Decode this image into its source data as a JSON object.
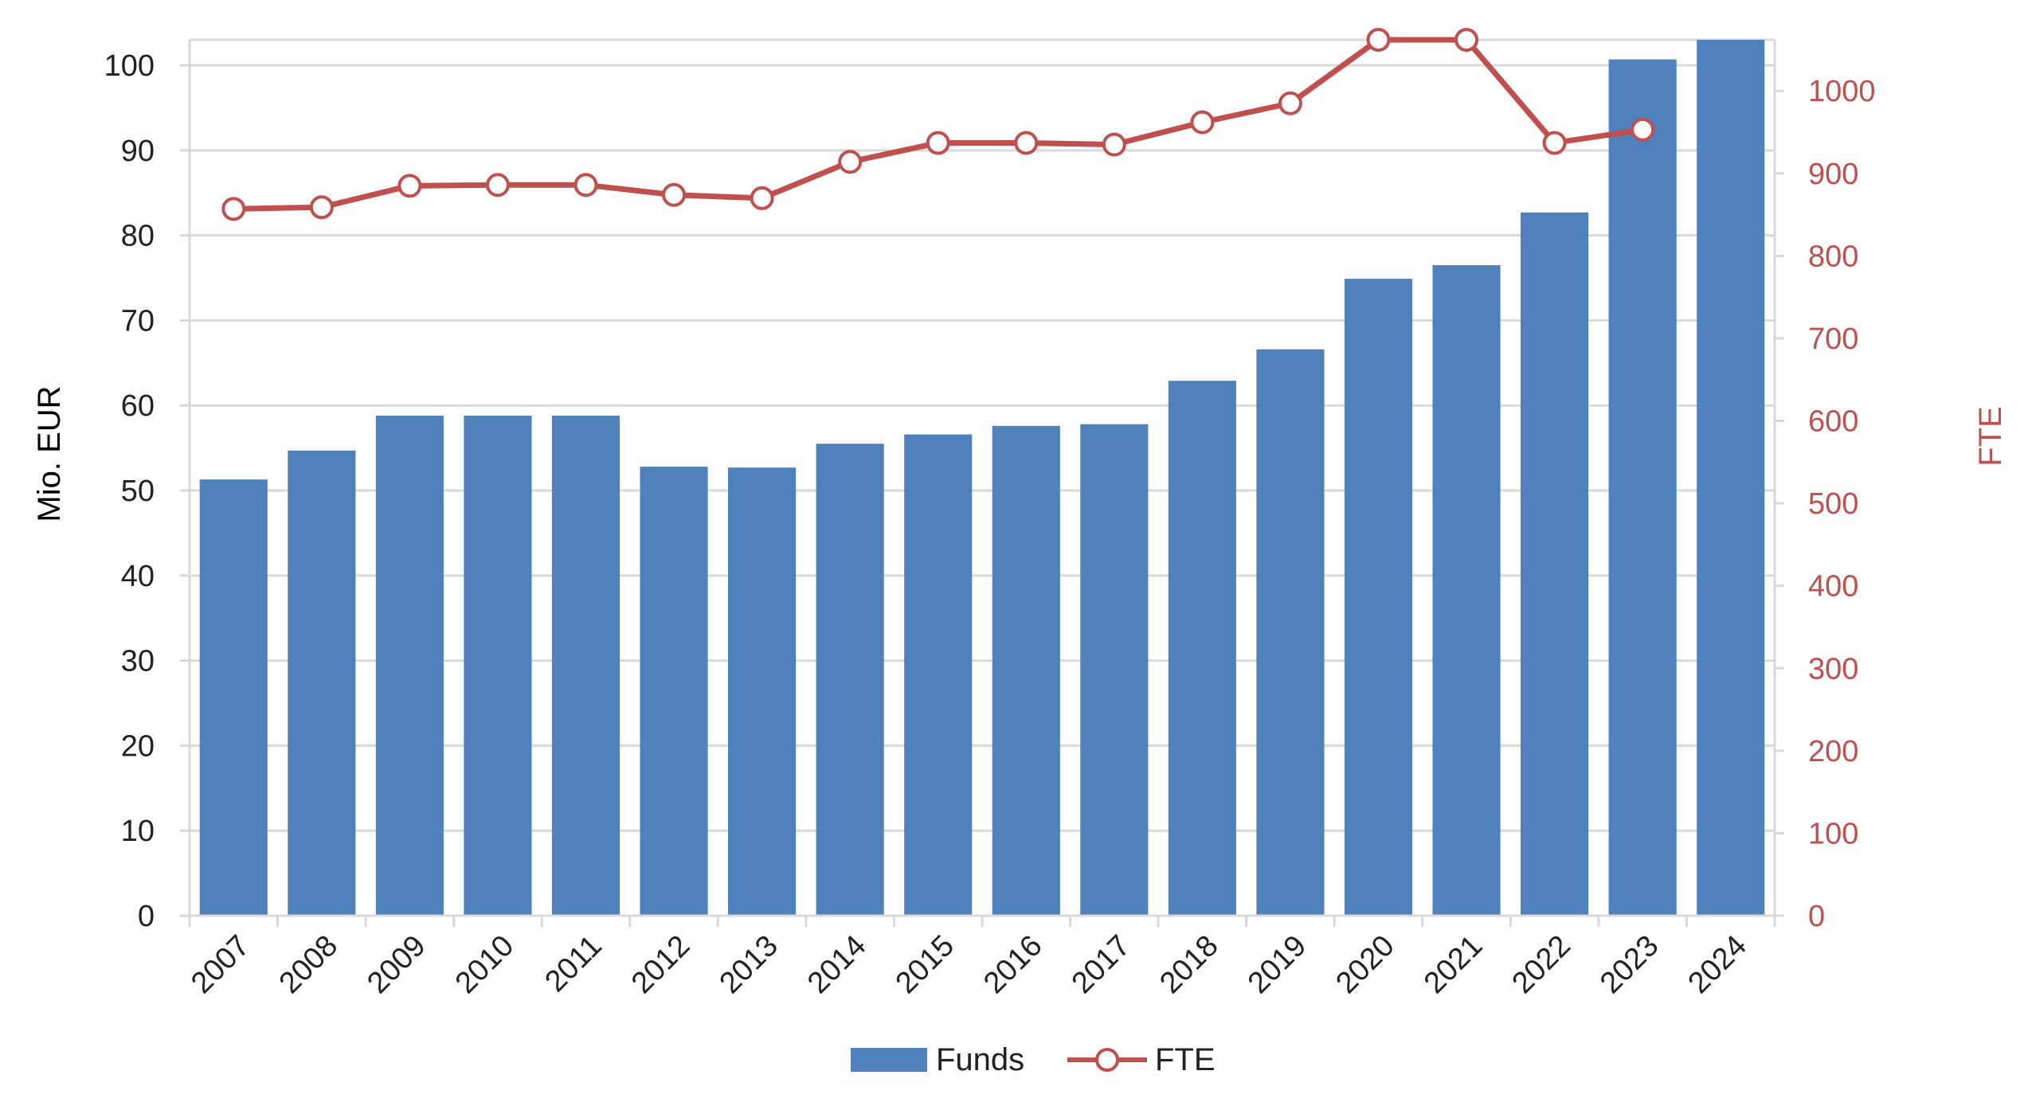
{
  "chart_data": {
    "type": "bar",
    "categories": [
      "2007",
      "2008",
      "2009",
      "2010",
      "2011",
      "2012",
      "2013",
      "2014",
      "2015",
      "2016",
      "2017",
      "2018",
      "2019",
      "2020",
      "2021",
      "2022",
      "2023",
      "2024"
    ],
    "series": [
      {
        "name": "Funds",
        "type": "bar",
        "axis": "left",
        "color": "#4f81bd",
        "values": [
          51.3,
          54.7,
          58.8,
          58.8,
          58.8,
          52.8,
          52.7,
          55.5,
          56.6,
          57.6,
          57.8,
          62.9,
          66.6,
          74.9,
          76.5,
          82.7,
          100.7,
          103.0
        ]
      },
      {
        "name": "FTE",
        "type": "line",
        "axis": "right",
        "color": "#c0504d",
        "marker": "circle-open",
        "values": [
          857,
          859,
          885,
          886,
          886,
          874,
          870,
          914,
          937,
          937,
          935,
          962,
          985,
          1062,
          1062,
          937,
          953,
          null
        ]
      }
    ],
    "title": "",
    "xlabel": "",
    "ylabel": "Mio. EUR",
    "y2label": "FTE",
    "ylim": [
      0,
      103
    ],
    "y2lim": [
      0,
      1062
    ],
    "yticks": [
      0,
      10,
      20,
      30,
      40,
      50,
      60,
      70,
      80,
      90,
      100
    ],
    "y2ticks": [
      0,
      100,
      200,
      300,
      400,
      500,
      600,
      700,
      800,
      900,
      1000
    ],
    "grid": true,
    "legend": "bottom-center",
    "left_axis_color": "#222222",
    "right_axis_color": "#c0504d",
    "grid_color": "#d9d9d9"
  }
}
